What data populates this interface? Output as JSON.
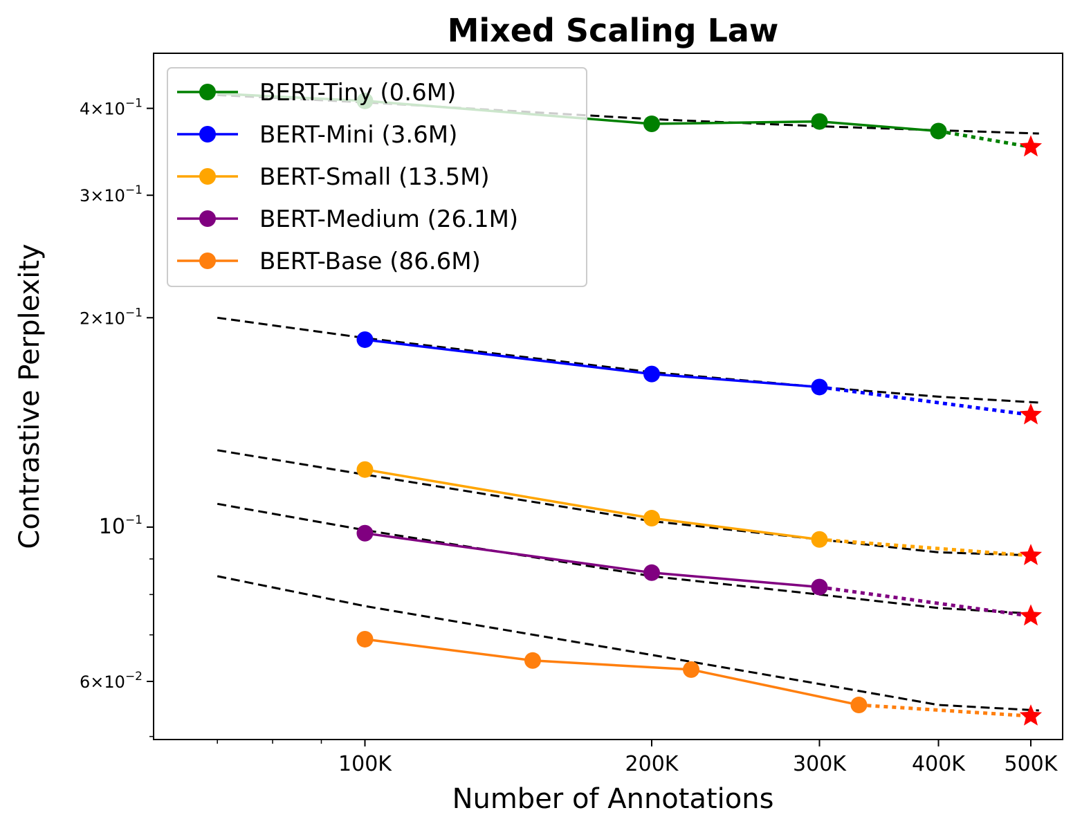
{
  "chart_data": {
    "type": "line",
    "title": "Mixed Scaling Law",
    "xlabel": "Number of Annotations",
    "ylabel": "Contrastive Perplexity",
    "xscale": "log",
    "yscale": "log",
    "xlim": [
      60000,
      540000
    ],
    "ylim": [
      0.0495,
      0.48
    ],
    "x_ticks": [
      {
        "value": 100000,
        "label": "100K"
      },
      {
        "value": 200000,
        "label": "200K"
      },
      {
        "value": 300000,
        "label": "300K"
      },
      {
        "value": 400000,
        "label": "400K"
      },
      {
        "value": 500000,
        "label": "500K"
      }
    ],
    "y_ticks": [
      {
        "value": 0.4,
        "mant": "4",
        "base": "10",
        "exp": "−1"
      },
      {
        "value": 0.3,
        "mant": "3",
        "base": "10",
        "exp": "−1"
      },
      {
        "value": 0.2,
        "mant": "2",
        "base": "10",
        "exp": "−1"
      },
      {
        "value": 0.1,
        "mant": "",
        "base": "10",
        "exp": "−1"
      },
      {
        "value": 0.06,
        "mant": "6",
        "base": "10",
        "exp": "−2"
      }
    ],
    "y_minor_ticks": [
      0.05,
      0.07,
      0.08,
      0.09
    ],
    "x_minor_ticks": [
      70000,
      80000,
      90000
    ],
    "legend_position": "upper-left",
    "grid": false,
    "series": [
      {
        "name": "BERT-Tiny (0.6M)",
        "color": "#008000",
        "x": [
          70000,
          100000,
          200000,
          300000,
          400000
        ],
        "y": [
          0.42,
          0.41,
          0.38,
          0.383,
          0.371
        ],
        "extrapolated": {
          "x": 500000,
          "y": 0.352
        },
        "fit": [
          0.418,
          0.408,
          0.386,
          0.377,
          0.372,
          0.368
        ]
      },
      {
        "name": "BERT-Mini (3.6M)",
        "color": "#0000ff",
        "x": [
          100000,
          200000,
          300000
        ],
        "y": [
          0.186,
          0.166,
          0.159
        ],
        "extrapolated": {
          "x": 500000,
          "y": 0.145
        },
        "fit": [
          0.2,
          0.187,
          0.167,
          0.159,
          0.154,
          0.151
        ]
      },
      {
        "name": "BERT-Small (13.5M)",
        "color": "#ffa500",
        "x": [
          100000,
          200000,
          300000
        ],
        "y": [
          0.121,
          0.103,
          0.096
        ],
        "extrapolated": {
          "x": 500000,
          "y": 0.091
        },
        "fit": [
          0.129,
          0.119,
          0.102,
          0.096,
          0.092,
          0.091
        ]
      },
      {
        "name": "BERT-Medium (26.1M)",
        "color": "#800080",
        "x": [
          100000,
          200000,
          300000
        ],
        "y": [
          0.098,
          0.086,
          0.082
        ],
        "extrapolated": {
          "x": 500000,
          "y": 0.0745
        },
        "fit": [
          0.108,
          0.099,
          0.085,
          0.08,
          0.0765,
          0.075
        ]
      },
      {
        "name": "BERT-Base (86.6M)",
        "color": "#ff7f0e",
        "x": [
          100000,
          150000,
          220000,
          330000
        ],
        "y": [
          0.069,
          0.0643,
          0.0624,
          0.0555
        ],
        "extrapolated": {
          "x": 500000,
          "y": 0.0535
        },
        "fit": [
          0.085,
          0.077,
          0.0655,
          0.0595,
          0.0555,
          0.0545
        ]
      }
    ],
    "fit_x": [
      70000,
      100000,
      200000,
      300000,
      400000,
      510000
    ],
    "fit_style": "dashed",
    "extrapolation_marker": "star",
    "extrapolation_color": "#ff0000"
  }
}
